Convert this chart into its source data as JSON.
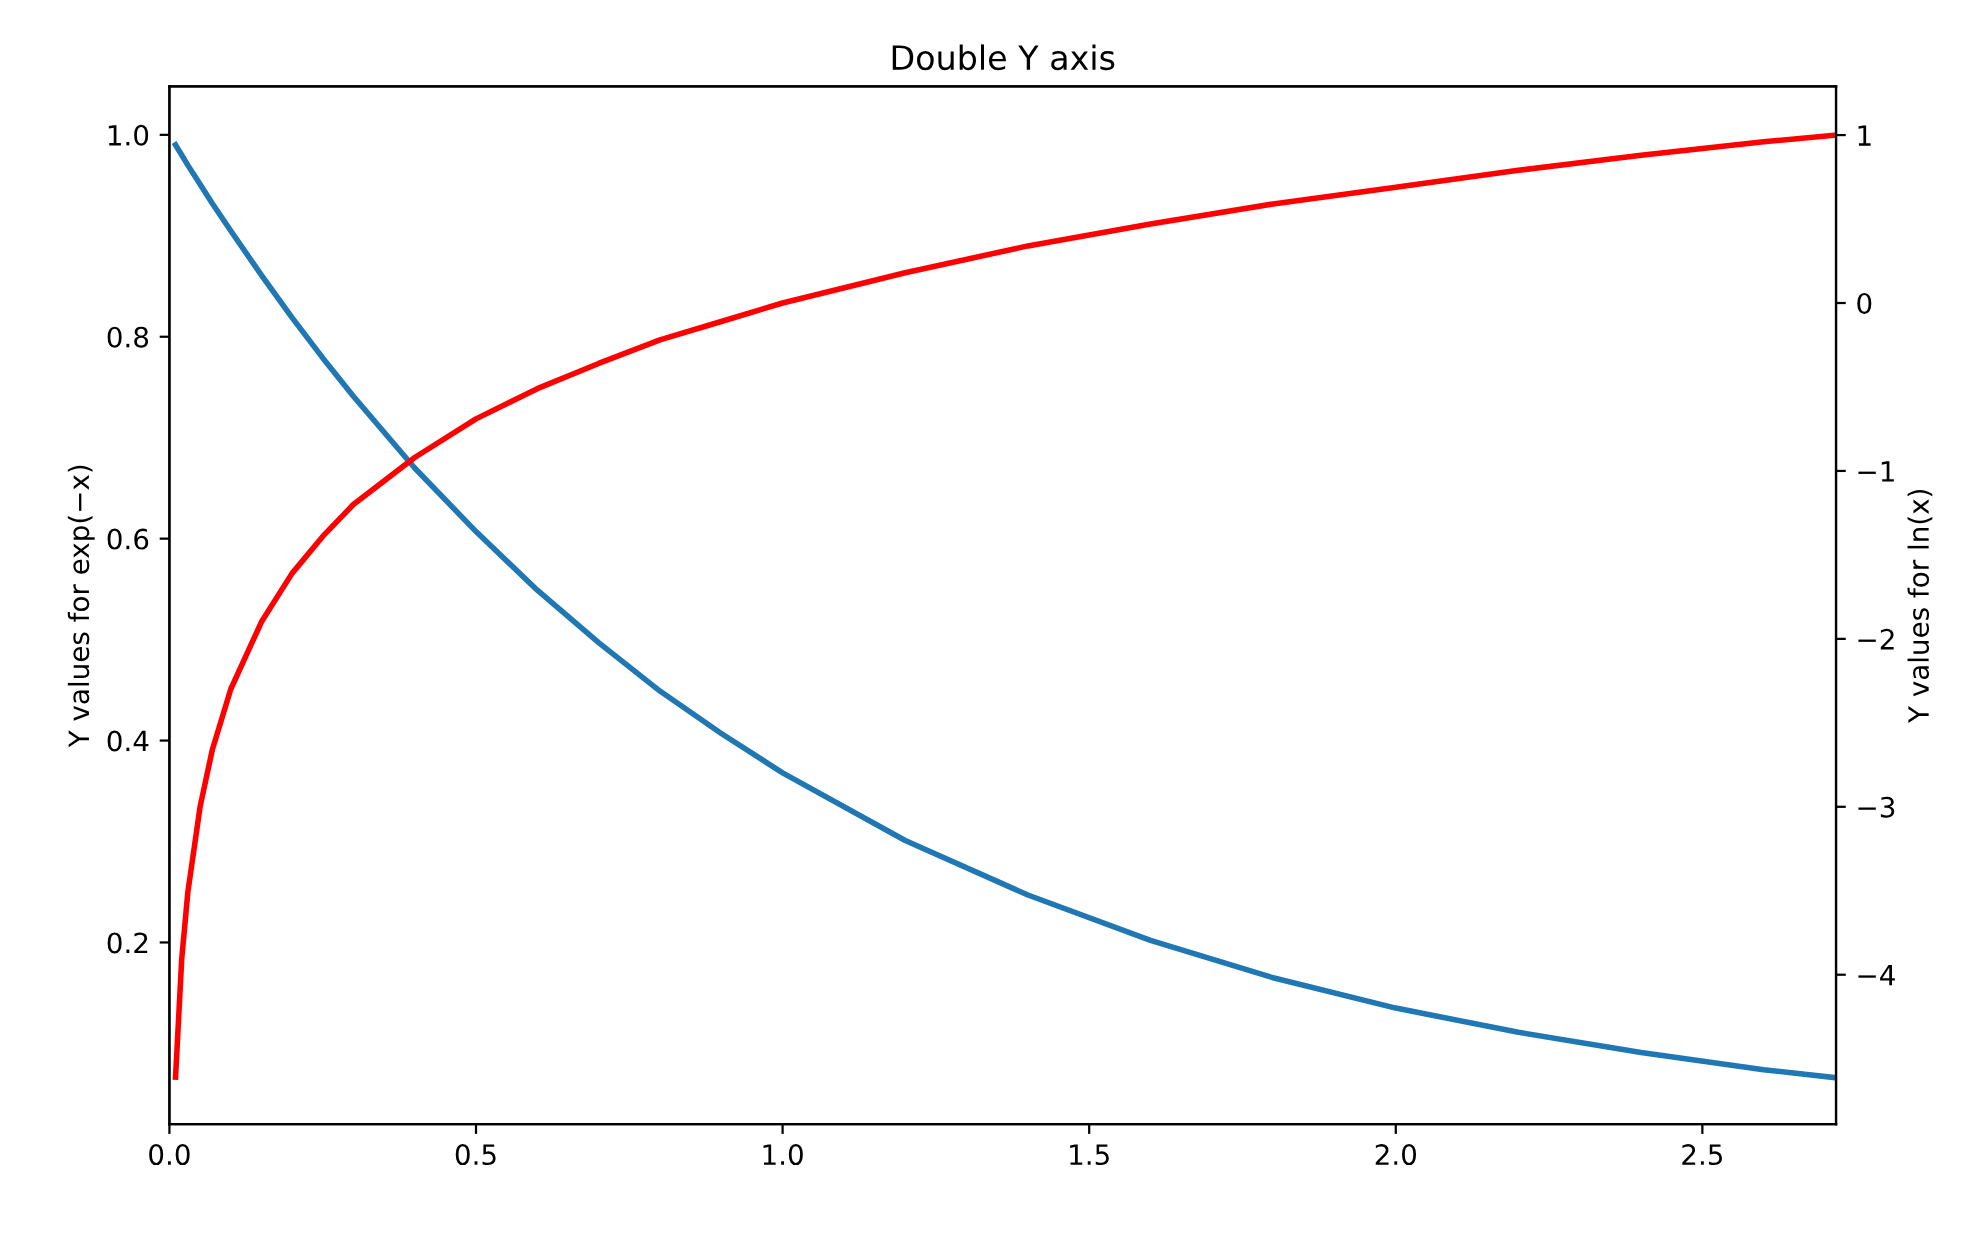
{
  "chart_data": {
    "type": "line",
    "title": "Double Y axis",
    "ylabel": "Y values for exp(−x)",
    "y2label": "Y values for ln(x)",
    "xlim": [
      0,
      2.718
    ],
    "xticks": [
      {
        "value": 0,
        "label": "0.0"
      },
      0.5,
      {
        "value": 1,
        "label": "1.0"
      },
      1.5,
      {
        "value": 2,
        "label": "2.0"
      },
      2.5
    ],
    "ylim": [
      0.02,
      1.048
    ],
    "yticks": [
      0.2,
      0.4,
      0.6,
      0.8,
      {
        "value": 1,
        "label": "1.0"
      }
    ],
    "y2lim": [
      -4.89,
      1.29
    ],
    "y2ticks": [
      {
        "value": -4,
        "label": "−4"
      },
      {
        "value": -3,
        "label": "−3"
      },
      {
        "value": -2,
        "label": "−2"
      },
      {
        "value": -1,
        "label": "−1"
      },
      0,
      1
    ],
    "grid": false,
    "legend": false,
    "series": [
      {
        "color": "#1f77b4",
        "x": [
          0.01,
          0.02,
          0.03,
          0.05,
          0.07,
          0.1,
          0.15,
          0.2,
          0.25,
          0.3,
          0.4,
          0.5,
          0.6,
          0.7,
          0.8,
          0.9,
          1.0,
          1.2,
          1.4,
          1.6,
          1.8,
          2.0,
          2.2,
          2.4,
          2.6,
          2.718
        ],
        "values": [
          0.99,
          0.98,
          0.97,
          0.951,
          0.932,
          0.905,
          0.861,
          0.819,
          0.779,
          0.741,
          0.67,
          0.607,
          0.549,
          0.497,
          0.449,
          0.407,
          0.368,
          0.301,
          0.247,
          0.202,
          0.165,
          0.135,
          0.111,
          0.091,
          0.074,
          0.066
        ]
      },
      {
        "color": "#ff0000",
        "axis": "y2",
        "x": [
          0.01,
          0.02,
          0.03,
          0.05,
          0.07,
          0.1,
          0.15,
          0.2,
          0.25,
          0.3,
          0.4,
          0.5,
          0.6,
          0.7,
          0.8,
          0.9,
          1.0,
          1.2,
          1.4,
          1.6,
          1.8,
          2.0,
          2.2,
          2.4,
          2.6,
          2.718
        ],
        "values": [
          -4.61,
          -3.91,
          -3.51,
          -3.0,
          -2.66,
          -2.3,
          -1.9,
          -1.61,
          -1.39,
          -1.2,
          -0.92,
          -0.69,
          -0.51,
          -0.36,
          -0.22,
          -0.11,
          0,
          0.18,
          0.34,
          0.47,
          0.59,
          0.69,
          0.79,
          0.88,
          0.96,
          1.0
        ]
      }
    ]
  }
}
